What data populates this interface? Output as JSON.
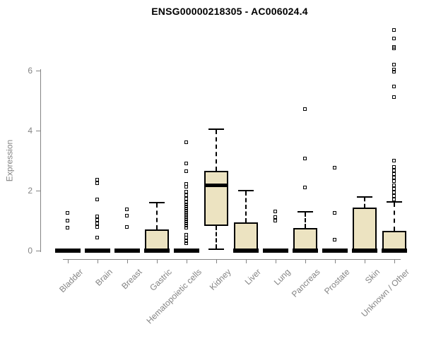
{
  "page": {
    "background": "#ffffff"
  },
  "chart_data": {
    "type": "boxplot",
    "title": "ENSG00000218305 - AC006024.4",
    "ylabel": "Expression",
    "xlabel": "",
    "yticks": [
      0,
      2,
      4,
      6
    ],
    "ylim": [
      0,
      7.4
    ],
    "grid": false,
    "legend": "none",
    "box_fill": "#ece3c1",
    "box_border": "#000000",
    "axis_color": "#848484",
    "title_color": "#000000",
    "categories": [
      "Bladder",
      "Brain",
      "Breast",
      "Gastric",
      "Hematopoietic cells",
      "Kidney",
      "Liver",
      "Lung",
      "Pancreas",
      "Prostate",
      "Skin",
      "Unknown / Other"
    ],
    "series": [
      {
        "name": "Bladder",
        "q1": 0,
        "median": 0,
        "q3": 0,
        "whisker_low": 0,
        "whisker_high": 0,
        "outliers": [
          1.25,
          1.0,
          0.76
        ]
      },
      {
        "name": "Brain",
        "q1": 0,
        "median": 0,
        "q3": 0,
        "whisker_low": 0,
        "whisker_high": 0,
        "outliers": [
          2.35,
          2.24,
          1.69,
          1.13,
          1.01,
          0.89,
          0.78,
          0.42
        ]
      },
      {
        "name": "Breast",
        "q1": 0,
        "median": 0,
        "q3": 0,
        "whisker_low": 0,
        "whisker_high": 0,
        "outliers": [
          1.37,
          1.15,
          0.78
        ]
      },
      {
        "name": "Gastric",
        "q1": 0,
        "median": 0,
        "q3": 0.7,
        "whisker_low": 0,
        "whisker_high": 1.6,
        "outliers": []
      },
      {
        "name": "Hematopoietic cells",
        "q1": 0,
        "median": 0,
        "q3": 0,
        "whisker_low": 0,
        "whisker_high": 0,
        "outliers": [
          3.6,
          2.9,
          2.64,
          2.21,
          2.12,
          1.96,
          1.84,
          1.72,
          1.6,
          1.52,
          1.45,
          1.38,
          1.31,
          1.24,
          1.17,
          1.1,
          1.03,
          0.96,
          0.89,
          0.82,
          0.76,
          0.52,
          0.42,
          0.31,
          0.24
        ]
      },
      {
        "name": "Kidney",
        "q1": 0.82,
        "median": 2.2,
        "q3": 2.65,
        "whisker_low": 0.05,
        "whisker_high": 4.05,
        "outliers": []
      },
      {
        "name": "Liver",
        "q1": 0,
        "median": 0,
        "q3": 0.95,
        "whisker_low": 0,
        "whisker_high": 2.0,
        "outliers": []
      },
      {
        "name": "Lung",
        "q1": 0,
        "median": 0,
        "q3": 0,
        "whisker_low": 0,
        "whisker_high": 0,
        "outliers": [
          1.3,
          1.1,
          0.99
        ]
      },
      {
        "name": "Pancreas",
        "q1": 0,
        "median": 0,
        "q3": 0.76,
        "whisker_low": 0,
        "whisker_high": 1.3,
        "outliers": [
          4.7,
          3.05,
          2.1
        ]
      },
      {
        "name": "Prostate",
        "q1": 0,
        "median": 0,
        "q3": 0,
        "whisker_low": 0,
        "whisker_high": 0,
        "outliers": [
          2.75,
          1.25,
          0.35
        ]
      },
      {
        "name": "Skin",
        "q1": 0,
        "median": 0,
        "q3": 1.43,
        "whisker_low": 0,
        "whisker_high": 1.78,
        "outliers": []
      },
      {
        "name": "Unknown / Other",
        "q1": 0,
        "median": 0,
        "q3": 0.65,
        "whisker_low": 0,
        "whisker_high": 1.62,
        "outliers": [
          7.34,
          7.06,
          6.78,
          6.72,
          6.19,
          6.02,
          5.96,
          5.46,
          5.11,
          3.0,
          2.78,
          2.66,
          2.54,
          2.42,
          2.3,
          2.17,
          2.05,
          1.93,
          1.81,
          1.7
        ]
      }
    ]
  }
}
